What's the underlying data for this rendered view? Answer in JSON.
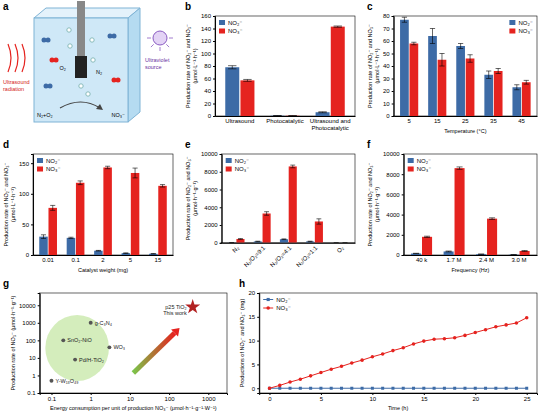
{
  "diagram": {
    "panel": "a",
    "ultrasound": "Ultrasound radiation",
    "ultraviolet": "Ultraviolet source",
    "o2": "O₂",
    "n2": "N₂",
    "reactants": "N₂+O₂",
    "product": "NO₃⁻"
  },
  "chart_data": [
    {
      "panel": "b",
      "type": "bar",
      "y_label": "Production rate of NO₂⁻ and NO₃⁻ (μmol·L⁻¹·h⁻¹)",
      "categories": [
        "Ultrasound",
        "Photocatalytic",
        "Ultrasound and Photocatalytic"
      ],
      "series": [
        {
          "name": "NO₂⁻",
          "color": "#3d6ba6",
          "values": [
            78,
            0.5,
            6
          ],
          "errors": [
            2.5,
            0.2,
            0.8
          ]
        },
        {
          "name": "NO₃⁻",
          "color": "#e5231f",
          "values": [
            57,
            0.4,
            143
          ],
          "errors": [
            1.5,
            0.2,
            1
          ]
        }
      ],
      "ylim": [
        0,
        160
      ],
      "yticks": [
        0,
        20,
        40,
        60,
        80,
        100,
        120,
        140,
        160
      ],
      "legend": "top-left"
    },
    {
      "panel": "c",
      "type": "bar",
      "x_label": "Temperature (°C)",
      "y_label": "Production rate of NO₂⁻ and NO₃⁻ (μmol·L⁻¹·h⁻¹)",
      "categories": [
        "5",
        "15",
        "25",
        "35",
        "45"
      ],
      "series": [
        {
          "name": "NO₂⁻",
          "color": "#3d6ba6",
          "values": [
            77,
            64,
            56,
            33,
            23
          ],
          "errors": [
            2,
            6,
            2,
            3,
            2
          ]
        },
        {
          "name": "NO₃⁻",
          "color": "#e5231f",
          "values": [
            58,
            45,
            46,
            36,
            27
          ],
          "errors": [
            1,
            5,
            3,
            2,
            1.5
          ]
        }
      ],
      "ylim": [
        0,
        80
      ],
      "yticks": [
        0,
        10,
        20,
        30,
        40,
        50,
        60,
        70,
        80
      ],
      "legend": "top-right"
    },
    {
      "panel": "d",
      "type": "bar",
      "x_label": "Catalyst weight (mg)",
      "y_label": "Production rate of NO₂⁻ and NO₃⁻ (μmol·L⁻¹·h⁻¹)",
      "categories": [
        "0.01",
        "0.1",
        "2",
        "5",
        "15"
      ],
      "series": [
        {
          "name": "NO₂⁻",
          "color": "#3d6ba6",
          "values": [
            30,
            28,
            7,
            3,
            2
          ],
          "errors": [
            3,
            1,
            0.5,
            0.5,
            0.3
          ]
        },
        {
          "name": "NO₃⁻",
          "color": "#e5231f",
          "values": [
            77,
            118,
            143,
            134,
            113
          ],
          "errors": [
            4,
            3,
            2,
            8,
            2
          ]
        }
      ],
      "ylim": [
        0,
        165
      ],
      "yticks": [
        0,
        50,
        100,
        150
      ],
      "legend": "top-left"
    },
    {
      "panel": "e",
      "type": "bar",
      "y_label": "Production rate of NO₂⁻ and NO₃⁻ (μmol·h⁻¹·g⁻¹)",
      "categories": [
        "N₂",
        "N₂/O₂=9:1",
        "N₂/O₂=4:1",
        "N₂/O₂=1:1",
        "O₂"
      ],
      "series": [
        {
          "name": "NO₂⁻",
          "color": "#3d6ba6",
          "values": [
            20,
            150,
            400,
            150,
            0
          ],
          "errors": [
            5,
            30,
            40,
            30,
            0
          ]
        },
        {
          "name": "NO₃⁻",
          "color": "#e5231f",
          "values": [
            430,
            3300,
            8600,
            2400,
            0
          ],
          "errors": [
            40,
            200,
            150,
            300,
            0
          ]
        }
      ],
      "ylim": [
        0,
        10000
      ],
      "yticks": [
        0,
        2000,
        4000,
        6000,
        8000,
        10000
      ],
      "legend": "top-left"
    },
    {
      "panel": "f",
      "type": "bar",
      "x_label": "Frequency (Hz)",
      "y_label": "Production rate of NO₂⁻ and NO₃⁻ (μmol·h⁻¹·g⁻¹)",
      "categories": [
        "40 k",
        "1.7 M",
        "2.4 M",
        "3.0 M"
      ],
      "series": [
        {
          "name": "NO₂⁻",
          "color": "#3d6ba6",
          "values": [
            150,
            350,
            80,
            30
          ],
          "errors": [
            20,
            40,
            15,
            10
          ]
        },
        {
          "name": "NO₃⁻",
          "color": "#e5231f",
          "values": [
            1800,
            8600,
            3600,
            400
          ],
          "errors": [
            60,
            120,
            80,
            40
          ]
        }
      ],
      "ylim": [
        0,
        10000
      ],
      "yticks": [
        0,
        2000,
        4000,
        6000,
        8000,
        10000
      ],
      "legend": "top-left"
    },
    {
      "panel": "g",
      "type": "scatter",
      "log": true,
      "x_label": "Energy consumption per unit of production NO₃⁻ (μmol·h⁻¹·g⁻¹·W⁻¹)",
      "y_label": "Production rate of NO₃⁻ (μmol·h⁻¹·g⁻¹)",
      "xlim": [
        0.05,
        3000
      ],
      "xticks": [
        0.1,
        1,
        10,
        100,
        1000
      ],
      "ylim": [
        0.1,
        50000
      ],
      "yticks": [
        0.1,
        1,
        10,
        100,
        1000,
        10000
      ],
      "annotation": "This work",
      "series": [
        {
          "color": "#555555",
          "marker": "circle",
          "x": [
            1,
            0.2,
            3,
            0.4,
            0.1
          ],
          "values": [
            1000,
            100,
            40,
            8,
            0.5
          ],
          "labels": [
            "g-C₃N₄",
            "SnO₂-NiO",
            "WO₃",
            "Pd/H-TiO₂",
            "Y-W₁₈O₄₉"
          ]
        },
        {
          "color": "#b22222",
          "marker": "star",
          "x": [
            400
          ],
          "values": [
            8000
          ],
          "labels": [
            "p25 TiO₂"
          ]
        }
      ]
    },
    {
      "panel": "h",
      "type": "line",
      "x_label": "Time (h)",
      "y_label": "Productions of NO₂⁻ and NO₃⁻ (mg)",
      "x": [
        0,
        1,
        2,
        3,
        4,
        5,
        6,
        7,
        8,
        9,
        10,
        11,
        12,
        13,
        14,
        15,
        16,
        17,
        18,
        19,
        20,
        21,
        22,
        23,
        24,
        25
      ],
      "xlim": [
        -1,
        26
      ],
      "xticks": [
        0,
        5,
        10,
        15,
        20,
        25
      ],
      "ylim": [
        -1,
        20
      ],
      "yticks": [
        0,
        5,
        10,
        15,
        20
      ],
      "legend": "top-left",
      "series": [
        {
          "name": "NO₂⁻",
          "color": "#3d6ba6",
          "marker": "square",
          "values": [
            0,
            0,
            0,
            0,
            0,
            0,
            0,
            0,
            0,
            0,
            0,
            0,
            0,
            0,
            0,
            0,
            0,
            0,
            0,
            0,
            0,
            0,
            0,
            0,
            0,
            0
          ]
        },
        {
          "name": "NO₃⁻",
          "color": "#e5231f",
          "marker": "circle",
          "values": [
            0,
            0.6,
            1.3,
            1.9,
            2.6,
            3.3,
            4.0,
            4.6,
            5.3,
            5.9,
            6.6,
            7.2,
            7.9,
            8.5,
            9.3,
            9.9,
            10.3,
            10.4,
            10.6,
            11.1,
            11.7,
            12.3,
            12.9,
            13.3,
            13.7,
            14.8
          ]
        }
      ]
    }
  ]
}
